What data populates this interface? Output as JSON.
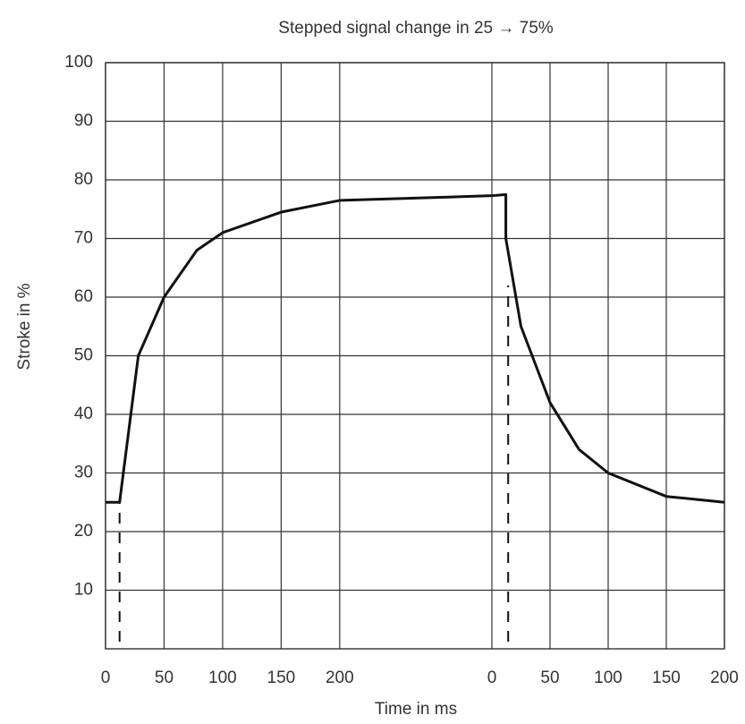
{
  "chart_data": {
    "type": "line",
    "title": "Stepped signal change in 25 → 75%",
    "y_label": "Stroke in %",
    "x_label": "Time in ms",
    "ylim": [
      0,
      100
    ],
    "yticks": [
      10,
      20,
      30,
      40,
      50,
      60,
      70,
      80,
      90,
      100
    ],
    "grid": true,
    "color": "#111111",
    "segments": [
      {
        "xlim": [
          0,
          330
        ],
        "xticks": [
          0,
          50,
          100,
          150,
          200
        ],
        "x": [
          0,
          12,
          28,
          50,
          78,
          100,
          150,
          200,
          330
        ],
        "values": [
          25,
          25,
          50,
          60,
          68,
          71,
          74.5,
          76.5,
          77.3
        ],
        "marker": {
          "x": 12,
          "top": 25
        }
      },
      {
        "xlim": [
          0,
          200
        ],
        "xticks": [
          0,
          50,
          100,
          150,
          200
        ],
        "x": [
          0,
          12,
          12,
          25,
          50,
          75,
          100,
          150,
          200
        ],
        "values": [
          77.3,
          77.5,
          70,
          55,
          42,
          34,
          30,
          26,
          25
        ],
        "marker": {
          "x": 14,
          "top": 62
        }
      }
    ]
  }
}
